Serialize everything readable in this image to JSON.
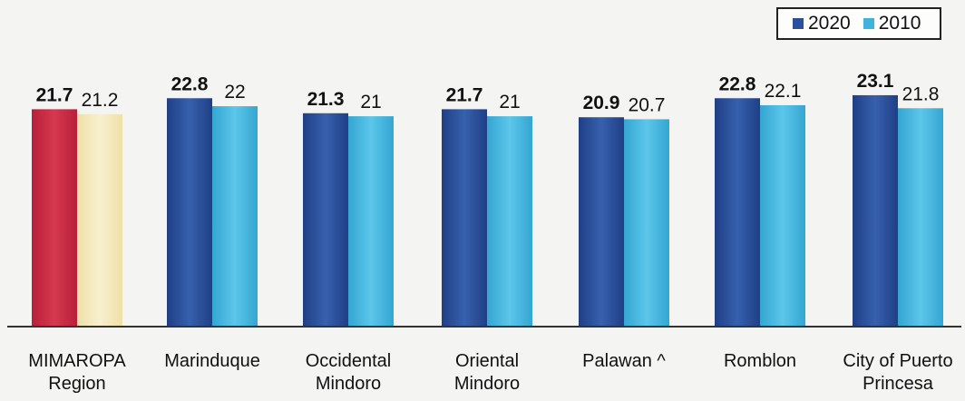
{
  "chart_data": {
    "type": "bar",
    "categories": [
      "MIMAROPA\nRegion",
      "Marinduque",
      "Occidental\nMindoro",
      "Oriental\nMindoro",
      "Palawan ^",
      "Romblon",
      "City of Puerto\nPrincesa"
    ],
    "series": [
      {
        "name": "2020",
        "values": [
          "21.7",
          "22.8",
          "21.3",
          "21.7",
          "20.9",
          "22.8",
          "23.1"
        ],
        "color": "#2b4f9b"
      },
      {
        "name": "2010",
        "values": [
          "21.2",
          "22",
          "21",
          "21",
          "20.7",
          "22.1",
          "21.8"
        ],
        "color": "#3fb3dc"
      }
    ],
    "highlight": {
      "category_index": 0,
      "colors": [
        "#c62a45",
        "#f2e6b6"
      ]
    },
    "ylim": [
      0,
      24
    ],
    "grid": false,
    "legend_position": "top-right"
  }
}
